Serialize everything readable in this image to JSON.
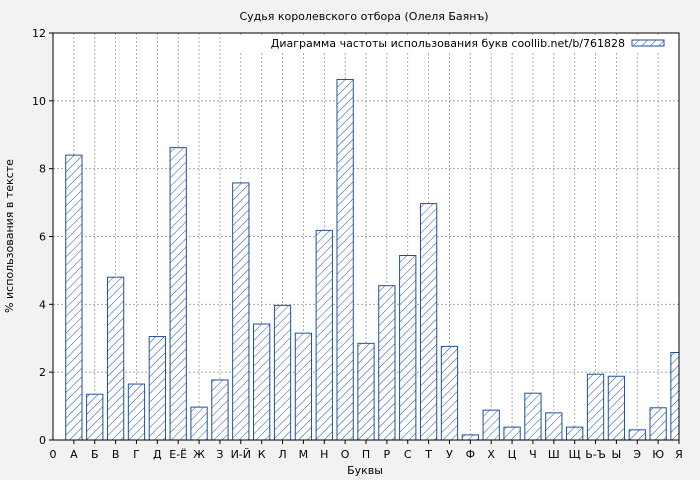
{
  "chart_data": {
    "type": "bar",
    "title": "Судья королевского отбора (Олеля Баянъ)",
    "xlabel": "Буквы",
    "ylabel": "% использования в тексте",
    "legend": "Диаграмма частоты использования букв coollib.net/b/761828",
    "legend_position": "top-right",
    "grid": true,
    "ylim": [
      0,
      12
    ],
    "yticks": [
      0,
      2,
      4,
      6,
      8,
      10,
      12
    ],
    "xlim_labels": {
      "left": "0",
      "right": "Я"
    },
    "categories": [
      "А",
      "Б",
      "В",
      "Г",
      "Д",
      "Е-Ё",
      "Ж",
      "З",
      "И-Й",
      "К",
      "Л",
      "М",
      "Н",
      "О",
      "П",
      "Р",
      "С",
      "Т",
      "У",
      "Ф",
      "Х",
      "Ц",
      "Ч",
      "Ш",
      "Щ",
      "Ь-Ъ",
      "Ы",
      "Э",
      "Ю",
      "Я"
    ],
    "values": [
      8.4,
      1.35,
      4.8,
      1.65,
      3.05,
      8.62,
      0.97,
      1.77,
      7.58,
      3.42,
      3.97,
      3.15,
      6.18,
      10.63,
      2.85,
      4.55,
      5.44,
      6.97,
      2.76,
      0.15,
      0.88,
      0.38,
      1.38,
      0.8,
      0.38,
      1.94,
      1.88,
      0.3,
      0.95,
      2.58
    ],
    "colors": {
      "bar_edge": "#1f4fa0",
      "hatch": "#1f4fa0",
      "bar_fill": "#ffffff",
      "grid": "#999999"
    }
  }
}
